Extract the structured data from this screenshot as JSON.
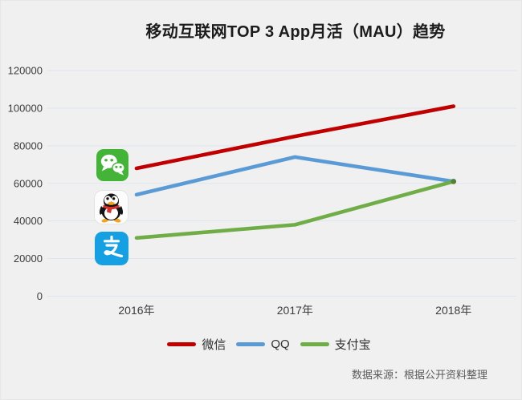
{
  "source_note": "数据来源：根据公开资料整理",
  "chart_data": {
    "type": "line",
    "title": "移动互联网TOP 3 App月活（MAU）趋势",
    "categories": [
      "2016年",
      "2017年",
      "2018年"
    ],
    "series": [
      {
        "id": "wechat",
        "name": "微信",
        "color": "#c00000",
        "values": [
          68000,
          85000,
          101000
        ]
      },
      {
        "id": "qq",
        "name": "QQ",
        "color": "#5b9bd5",
        "values": [
          54000,
          74000,
          61000
        ]
      },
      {
        "id": "alipay",
        "name": "支付宝",
        "color": "#70ad47",
        "values": [
          31000,
          38000,
          61000
        ]
      }
    ],
    "ylim": [
      0,
      120000
    ],
    "y_tick_step": 20000,
    "y_ticks": [
      0,
      20000,
      40000,
      60000,
      80000,
      100000,
      120000
    ],
    "grid": "horizontal",
    "legend_position": "bottom",
    "xlabel": "",
    "ylabel": ""
  },
  "colors": {
    "background": "#f0f0f1",
    "gridline": "#dde5ee",
    "title_text": "#1c1c1c",
    "axis_text": "#3c3c3c",
    "legend_text": "#303030",
    "source_text": "#5a5a5a",
    "alipay_endpoint_marker": "#548235",
    "wechat_icon_green": "#43b437",
    "alipay_icon_blue": "#14a0e2",
    "qq_scarf_red": "#d8302f"
  }
}
